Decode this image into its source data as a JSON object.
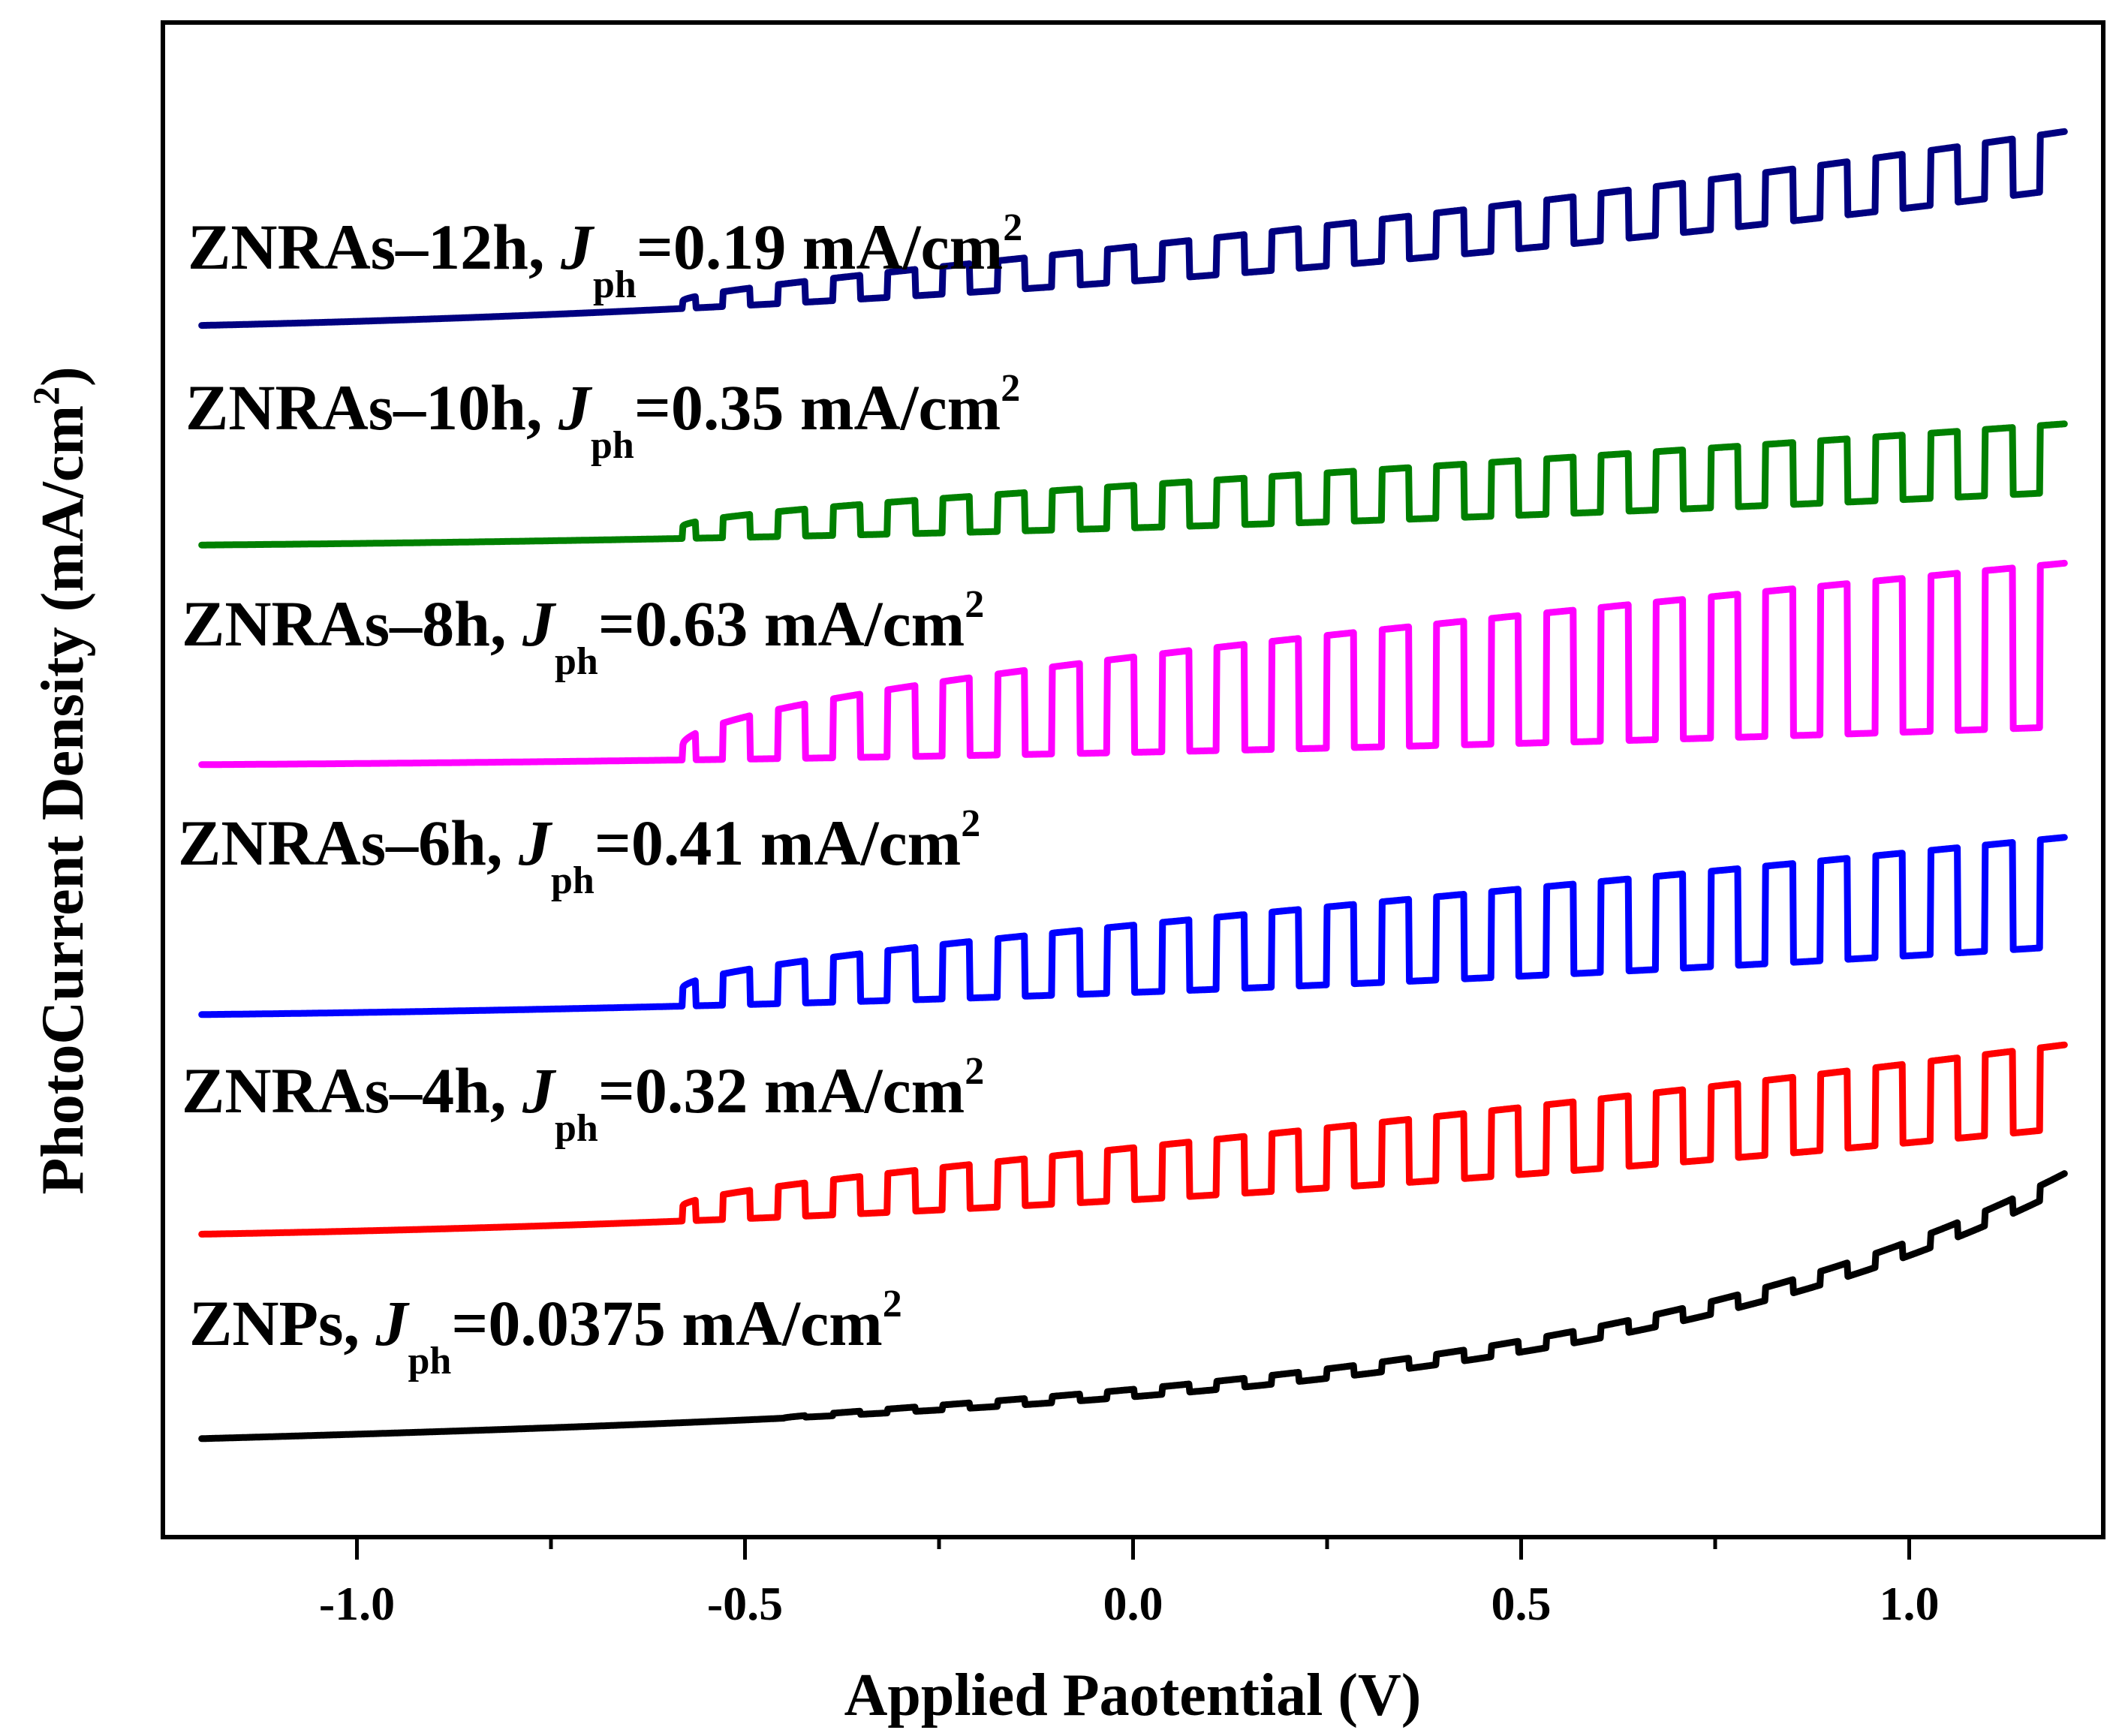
{
  "chart_data": {
    "type": "line",
    "title": "",
    "xlabel": "Applied Paotential (V)",
    "ylabel_main": "PhotoCurrent Density (mA/cm",
    "ylabel_sup": "2",
    "ylabel_close": ")",
    "xlim": [
      -1.25,
      1.25
    ],
    "ylim": [
      0,
      10
    ],
    "xticks_major": [
      -1.0,
      -0.5,
      0.0,
      0.5,
      1.0
    ],
    "xtick_labels": [
      "-1.0",
      "-0.5",
      "0.0",
      "0.5",
      "1.0"
    ],
    "xticks_minor": [
      -0.75,
      -0.25,
      0.25,
      0.75
    ],
    "yticks": "none",
    "grid": false,
    "legend": "inline-labels",
    "chopped_light": true,
    "x_range": [
      -1.2,
      1.2
    ],
    "series": [
      {
        "name": "ZNPs",
        "label_prefix": "ZNPs, ",
        "label_j": "J",
        "label_sub": "ph",
        "label_value": "=0.0375 mA/cm",
        "label_sup": "2",
        "jph": 0.0375,
        "color": "#000000",
        "baseline_start": 0.65,
        "baseline_end": 2.3,
        "curve": "exponential",
        "amplitude_start": 0.0,
        "amplitude_end": 0.1,
        "chop_start": -0.45
      },
      {
        "name": "ZNRAs-4h",
        "label_prefix": "ZNRAs–4h, ",
        "label_j": "J",
        "label_sub": "ph",
        "label_value": "=0.32 mA/cm",
        "label_sup": "2",
        "jph": 0.32,
        "color": "#ff0000",
        "baseline_start": 2.0,
        "baseline_end": 2.7,
        "curve": "linear",
        "amplitude_start": 0.1,
        "amplitude_end": 0.55,
        "chop_start": -0.58
      },
      {
        "name": "ZNRAs-6h",
        "label_prefix": "ZNRAs–6h, ",
        "label_j": "J",
        "label_sub": "ph",
        "label_value": "=0.41 mA/cm",
        "label_sup": "2",
        "jph": 0.41,
        "color": "#0000ff",
        "baseline_start": 3.45,
        "baseline_end": 3.9,
        "curve": "linear",
        "amplitude_start": 0.12,
        "amplitude_end": 0.72,
        "chop_start": -0.58
      },
      {
        "name": "ZNRAs-8h",
        "label_prefix": "ZNRAs–8h, ",
        "label_j": "J",
        "label_sub": "ph",
        "label_value": "=0.63 mA/cm",
        "label_sup": "2",
        "jph": 0.63,
        "color": "#ff00ff",
        "baseline_start": 5.1,
        "baseline_end": 5.35,
        "curve": "linear",
        "amplitude_start": 0.1,
        "amplitude_end": 1.08,
        "chop_start": -0.58
      },
      {
        "name": "ZNRAs-10h",
        "label_prefix": "ZNRAs–10h, ",
        "label_j": "J",
        "label_sub": "ph",
        "label_value": "=0.35 mA/cm",
        "label_sup": "2",
        "jph": 0.35,
        "color": "#008000",
        "baseline_start": 6.55,
        "baseline_end": 6.9,
        "curve": "linear",
        "amplitude_start": 0.08,
        "amplitude_end": 0.45,
        "chop_start": -0.58
      },
      {
        "name": "ZNRAs-12h",
        "label_prefix": "ZNRAs–12h, ",
        "label_j": "J",
        "label_sub": "ph",
        "label_value": "=0.19 mA/cm",
        "label_sup": "2",
        "jph": 0.19,
        "color": "#000080",
        "baseline_start": 8.0,
        "baseline_end": 8.9,
        "curve": "linear",
        "amplitude_start": 0.05,
        "amplitude_end": 0.38,
        "chop_start": -0.58
      }
    ]
  }
}
